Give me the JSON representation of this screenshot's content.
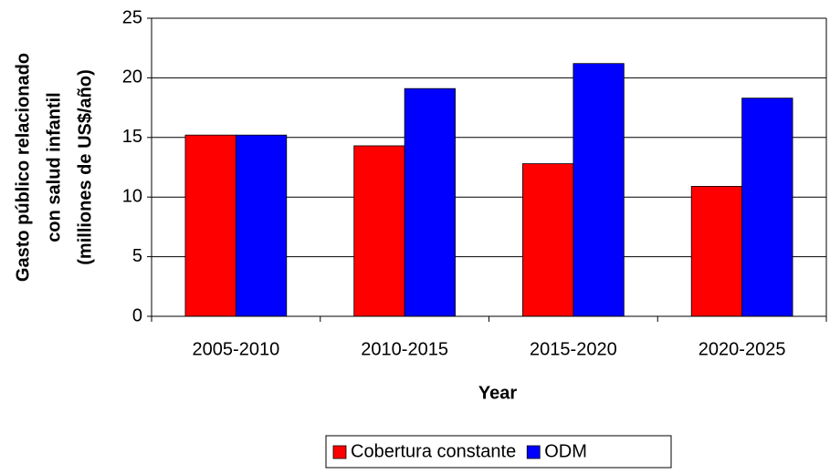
{
  "chart_data": {
    "type": "bar",
    "ylabel": [
      "Gasto público relacionado",
      "con salud infantil",
      "(milliones de US$/año)"
    ],
    "xlabel": "Year",
    "categories": [
      "2005-2010",
      "2010-2015",
      "2015-2020",
      "2020-2025"
    ],
    "series": [
      {
        "name": "Cobertura constante",
        "color": "#ff0000",
        "values": [
          15.2,
          14.3,
          12.8,
          10.9
        ]
      },
      {
        "name": "ODM",
        "color": "#0000ff",
        "values": [
          15.2,
          19.1,
          21.2,
          18.3
        ]
      }
    ],
    "ylim": [
      0,
      25
    ],
    "yticks": [
      0,
      5,
      10,
      15,
      20,
      25
    ],
    "grid": true,
    "legend": "bottom"
  }
}
